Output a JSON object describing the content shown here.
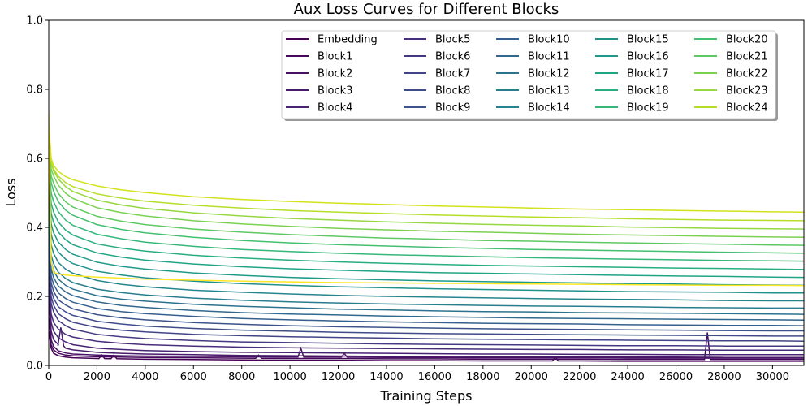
{
  "chart_data": {
    "type": "line",
    "title": "Aux Loss Curves for Different Blocks",
    "xlabel": "Training Steps",
    "ylabel": "Loss",
    "xlim": [
      0,
      31300
    ],
    "ylim": [
      0,
      1.0
    ],
    "xticks": [
      "0",
      "2000",
      "4000",
      "6000",
      "8000",
      "10000",
      "12000",
      "14000",
      "16000",
      "18000",
      "20000",
      "22000",
      "24000",
      "26000",
      "28000",
      "30000"
    ],
    "yticks": [
      "0.0",
      "0.2",
      "0.4",
      "0.6",
      "0.8",
      "1.0"
    ],
    "grid": false,
    "legend_location": "top-right",
    "legend_columns": 5,
    "x": [
      0,
      100,
      200,
      400,
      700,
      1000,
      2000,
      3000,
      4000,
      6000,
      8000,
      10000,
      12000,
      14000,
      16000,
      18000,
      20000,
      22000,
      24000,
      26000,
      28000,
      30000,
      31300
    ],
    "series": [
      {
        "name": "Embedding",
        "color": "#440154",
        "values": [
          0.1,
          0.05,
          0.035,
          0.028,
          0.024,
          0.022,
          0.02,
          0.019,
          0.018,
          0.017,
          0.016,
          0.015,
          0.015,
          0.014,
          0.014,
          0.013,
          0.013,
          0.013,
          0.012,
          0.012,
          0.012,
          0.012,
          0.012
        ]
      },
      {
        "name": "Block1",
        "color": "#46085c",
        "values": [
          0.14,
          0.06,
          0.045,
          0.035,
          0.03,
          0.028,
          0.025,
          0.024,
          0.023,
          0.022,
          0.021,
          0.02,
          0.02,
          0.019,
          0.019,
          0.018,
          0.018,
          0.018,
          0.017,
          0.017,
          0.017,
          0.017,
          0.017
        ]
      },
      {
        "name": "Block2",
        "color": "#471063",
        "values": [
          0.2,
          0.075,
          0.055,
          0.042,
          0.036,
          0.033,
          0.03,
          0.028,
          0.027,
          0.026,
          0.025,
          0.024,
          0.024,
          0.023,
          0.023,
          0.022,
          0.022,
          0.022,
          0.021,
          0.021,
          0.021,
          0.021,
          0.021
        ]
      },
      {
        "name": "Block3",
        "color": "#481a6c",
        "values": [
          0.24,
          0.1,
          0.075,
          0.06,
          0.05,
          0.045,
          0.038,
          0.035,
          0.033,
          0.031,
          0.029,
          0.028,
          0.027,
          0.026,
          0.026,
          0.025,
          0.025,
          0.024,
          0.024,
          0.024,
          0.023,
          0.023,
          0.023
        ]
      },
      {
        "name": "Block4",
        "color": "#482374",
        "values": [
          0.27,
          0.125,
          0.1,
          0.08,
          0.068,
          0.06,
          0.05,
          0.046,
          0.043,
          0.04,
          0.038,
          0.037,
          0.036,
          0.035,
          0.034,
          0.033,
          0.033,
          0.032,
          0.032,
          0.031,
          0.031,
          0.031,
          0.031
        ]
      },
      {
        "name": "Block5",
        "color": "#472d7b",
        "values": [
          0.3,
          0.15,
          0.125,
          0.105,
          0.09,
          0.082,
          0.07,
          0.064,
          0.06,
          0.056,
          0.053,
          0.051,
          0.05,
          0.049,
          0.048,
          0.047,
          0.046,
          0.046,
          0.045,
          0.045,
          0.044,
          0.044,
          0.044
        ]
      },
      {
        "name": "Block6",
        "color": "#443a83",
        "values": [
          0.32,
          0.18,
          0.155,
          0.13,
          0.115,
          0.105,
          0.09,
          0.083,
          0.078,
          0.072,
          0.068,
          0.066,
          0.064,
          0.062,
          0.061,
          0.06,
          0.059,
          0.058,
          0.057,
          0.057,
          0.056,
          0.056,
          0.056
        ]
      },
      {
        "name": "Block7",
        "color": "#414487",
        "values": [
          0.34,
          0.2,
          0.175,
          0.15,
          0.135,
          0.125,
          0.11,
          0.102,
          0.097,
          0.09,
          0.086,
          0.083,
          0.081,
          0.079,
          0.077,
          0.076,
          0.075,
          0.074,
          0.073,
          0.072,
          0.071,
          0.071,
          0.07
        ]
      },
      {
        "name": "Block8",
        "color": "#3e4c8a",
        "values": [
          0.36,
          0.22,
          0.195,
          0.17,
          0.155,
          0.145,
          0.128,
          0.12,
          0.114,
          0.107,
          0.102,
          0.099,
          0.096,
          0.094,
          0.092,
          0.091,
          0.09,
          0.089,
          0.088,
          0.087,
          0.086,
          0.085,
          0.085
        ]
      },
      {
        "name": "Block9",
        "color": "#3b528b",
        "values": [
          0.38,
          0.24,
          0.215,
          0.19,
          0.175,
          0.164,
          0.147,
          0.138,
          0.132,
          0.124,
          0.119,
          0.115,
          0.112,
          0.11,
          0.108,
          0.106,
          0.105,
          0.104,
          0.103,
          0.102,
          0.101,
          0.1,
          0.1
        ]
      },
      {
        "name": "Block10",
        "color": "#355f8d",
        "values": [
          0.4,
          0.26,
          0.235,
          0.21,
          0.194,
          0.183,
          0.165,
          0.156,
          0.15,
          0.142,
          0.136,
          0.132,
          0.129,
          0.126,
          0.124,
          0.122,
          0.121,
          0.12,
          0.118,
          0.117,
          0.116,
          0.116,
          0.115
        ]
      },
      {
        "name": "Block11",
        "color": "#31688e",
        "values": [
          0.42,
          0.28,
          0.255,
          0.23,
          0.213,
          0.202,
          0.184,
          0.174,
          0.168,
          0.159,
          0.153,
          0.149,
          0.146,
          0.143,
          0.141,
          0.139,
          0.137,
          0.136,
          0.135,
          0.134,
          0.133,
          0.132,
          0.131
        ]
      },
      {
        "name": "Block12",
        "color": "#2c728e",
        "values": [
          0.44,
          0.3,
          0.275,
          0.25,
          0.232,
          0.221,
          0.202,
          0.192,
          0.186,
          0.177,
          0.171,
          0.167,
          0.163,
          0.161,
          0.158,
          0.156,
          0.155,
          0.153,
          0.152,
          0.151,
          0.15,
          0.149,
          0.148
        ]
      },
      {
        "name": "Block13",
        "color": "#287d8e",
        "values": [
          0.46,
          0.32,
          0.295,
          0.27,
          0.252,
          0.24,
          0.221,
          0.211,
          0.204,
          0.195,
          0.189,
          0.184,
          0.181,
          0.178,
          0.176,
          0.174,
          0.172,
          0.171,
          0.17,
          0.168,
          0.167,
          0.166,
          0.166
        ]
      },
      {
        "name": "Block14",
        "color": "#25858e",
        "values": [
          0.48,
          0.35,
          0.325,
          0.298,
          0.279,
          0.267,
          0.246,
          0.235,
          0.228,
          0.218,
          0.212,
          0.207,
          0.203,
          0.2,
          0.198,
          0.196,
          0.194,
          0.192,
          0.191,
          0.19,
          0.188,
          0.187,
          0.187
        ]
      },
      {
        "name": "Block15",
        "color": "#21918c",
        "values": [
          0.5,
          0.38,
          0.355,
          0.328,
          0.308,
          0.295,
          0.273,
          0.262,
          0.254,
          0.244,
          0.237,
          0.232,
          0.228,
          0.225,
          0.222,
          0.22,
          0.218,
          0.216,
          0.214,
          0.213,
          0.212,
          0.21,
          0.21
        ]
      },
      {
        "name": "Block16",
        "color": "#1f9a8a",
        "values": [
          0.52,
          0.41,
          0.385,
          0.357,
          0.336,
          0.322,
          0.299,
          0.287,
          0.279,
          0.268,
          0.261,
          0.255,
          0.251,
          0.248,
          0.245,
          0.243,
          0.241,
          0.239,
          0.237,
          0.236,
          0.234,
          0.233,
          0.232
        ]
      },
      {
        "name": "Block17",
        "color": "#20a486",
        "values": [
          0.54,
          0.44,
          0.415,
          0.386,
          0.364,
          0.35,
          0.326,
          0.314,
          0.305,
          0.294,
          0.286,
          0.28,
          0.276,
          0.272,
          0.269,
          0.267,
          0.265,
          0.263,
          0.261,
          0.259,
          0.258,
          0.256,
          0.255
        ]
      },
      {
        "name": "Block18",
        "color": "#27ad81",
        "values": [
          0.56,
          0.47,
          0.445,
          0.415,
          0.392,
          0.378,
          0.352,
          0.34,
          0.331,
          0.319,
          0.311,
          0.305,
          0.3,
          0.296,
          0.293,
          0.29,
          0.288,
          0.286,
          0.284,
          0.282,
          0.281,
          0.279,
          0.278
        ]
      },
      {
        "name": "Block19",
        "color": "#35b779",
        "values": [
          0.58,
          0.5,
          0.475,
          0.445,
          0.421,
          0.406,
          0.38,
          0.367,
          0.357,
          0.345,
          0.336,
          0.33,
          0.325,
          0.321,
          0.318,
          0.315,
          0.312,
          0.31,
          0.308,
          0.306,
          0.304,
          0.303,
          0.302
        ]
      },
      {
        "name": "Block20",
        "color": "#44bf70",
        "values": [
          0.6,
          0.53,
          0.505,
          0.474,
          0.45,
          0.435,
          0.408,
          0.394,
          0.384,
          0.371,
          0.362,
          0.355,
          0.35,
          0.346,
          0.342,
          0.339,
          0.336,
          0.334,
          0.332,
          0.33,
          0.328,
          0.326,
          0.325
        ]
      },
      {
        "name": "Block21",
        "color": "#5ec962",
        "values": [
          0.62,
          0.55,
          0.528,
          0.498,
          0.474,
          0.459,
          0.432,
          0.418,
          0.408,
          0.395,
          0.386,
          0.379,
          0.374,
          0.369,
          0.366,
          0.362,
          0.36,
          0.357,
          0.355,
          0.353,
          0.351,
          0.349,
          0.348
        ]
      },
      {
        "name": "Block22",
        "color": "#7ad151",
        "values": [
          0.64,
          0.57,
          0.55,
          0.522,
          0.499,
          0.484,
          0.457,
          0.443,
          0.433,
          0.419,
          0.41,
          0.403,
          0.397,
          0.393,
          0.389,
          0.386,
          0.383,
          0.38,
          0.378,
          0.376,
          0.374,
          0.372,
          0.371
        ]
      },
      {
        "name": "Block23",
        "color": "#95d840",
        "values": [
          0.66,
          0.585,
          0.565,
          0.54,
          0.518,
          0.504,
          0.479,
          0.465,
          0.455,
          0.442,
          0.433,
          0.426,
          0.421,
          0.416,
          0.412,
          0.409,
          0.406,
          0.404,
          0.401,
          0.399,
          0.397,
          0.396,
          0.395
        ]
      },
      {
        "name": "Block24",
        "color": "#b5de2b",
        "values": [
          0.68,
          0.59,
          0.57,
          0.548,
          0.53,
          0.518,
          0.497,
          0.485,
          0.476,
          0.464,
          0.456,
          0.449,
          0.444,
          0.44,
          0.436,
          0.433,
          0.43,
          0.428,
          0.425,
          0.423,
          0.421,
          0.42,
          0.419
        ]
      },
      {
        "name": "",
        "color": "#d2e21b",
        "values": [
          0.7,
          0.6,
          0.58,
          0.562,
          0.547,
          0.538,
          0.52,
          0.509,
          0.501,
          0.489,
          0.481,
          0.475,
          0.47,
          0.466,
          0.462,
          0.459,
          0.456,
          0.453,
          0.451,
          0.449,
          0.447,
          0.445,
          0.444
        ]
      },
      {
        "name": "",
        "color": "#fde725",
        "values": [
          0.735,
          0.3,
          0.27,
          0.265,
          0.262,
          0.26,
          0.256,
          0.253,
          0.25,
          0.247,
          0.244,
          0.242,
          0.24,
          0.239,
          0.238,
          0.237,
          0.236,
          0.235,
          0.234,
          0.233,
          0.232,
          0.232,
          0.231
        ]
      }
    ],
    "spikes": [
      {
        "series": "Block3",
        "x": 500,
        "value": 0.11
      },
      {
        "series": "Embedding",
        "x": 2200,
        "value": 0.03
      },
      {
        "series": "Embedding",
        "x": 2700,
        "value": 0.03
      },
      {
        "series": "Block1",
        "x": 8700,
        "value": 0.03
      },
      {
        "series": "Block2",
        "x": 10450,
        "value": 0.05
      },
      {
        "series": "Block2",
        "x": 12250,
        "value": 0.035
      },
      {
        "series": "Embedding",
        "x": 21000,
        "value": 0.025
      },
      {
        "series": "Block1",
        "x": 27300,
        "value": 0.095
      }
    ]
  }
}
